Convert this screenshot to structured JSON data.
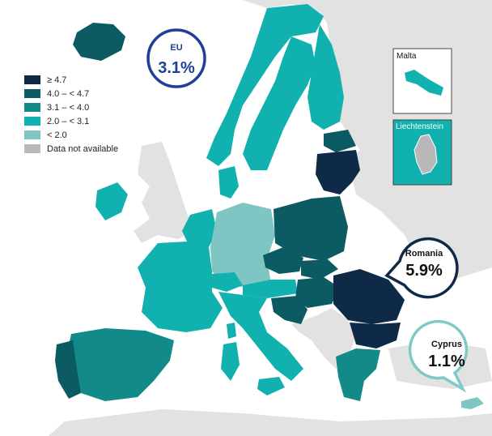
{
  "colors": {
    "c_ge47": "#0f2a47",
    "c_40_47": "#0c5a62",
    "c_31_40": "#128a8a",
    "c_20_31": "#10b1ae",
    "c_lt20": "#7fc5c4",
    "c_na": "#c9c9c9",
    "land_bg": "#e2e2e2",
    "sea": "#ffffff",
    "eu_ring": "#1e3f9a",
    "cyprus_ring": "#7fc9c7"
  },
  "legend": [
    {
      "label": "≥ 4.7",
      "color": "#0f2a47"
    },
    {
      "label": "4.0 – < 4.7",
      "color": "#0c5a62"
    },
    {
      "label": "3.1 – < 4.0",
      "color": "#128a8a"
    },
    {
      "label": "2.0 – < 3.1",
      "color": "#10b1ae"
    },
    {
      "label": "< 2.0",
      "color": "#7fc5c4"
    },
    {
      "label": "Data not available",
      "color": "#b8b8b8"
    }
  ],
  "eu": {
    "title": "EU",
    "value": "3.1%"
  },
  "callouts": {
    "romania": {
      "name": "Romania",
      "value": "5.9%"
    },
    "cyprus": {
      "name": "Cyprus",
      "value": "1.1%"
    }
  },
  "insets": {
    "malta": "Malta",
    "liechtenstein": "Liechtenstein"
  }
}
